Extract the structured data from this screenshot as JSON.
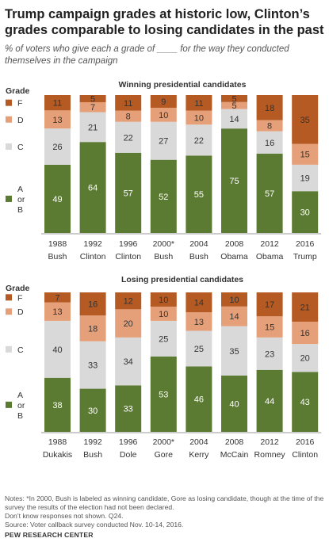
{
  "title": "Trump campaign grades at historic low, Clinton’s grades comparable to losing candidates in the past",
  "subtitle": "% of voters who give each a grade of ____ for the way they conducted themselves in the campaign",
  "notes": {
    "note": "Notes: *In 2000, Bush is labeled as winning candidate, Gore as losing candidate, though at the time of the survey the results of the election had not been declared.",
    "dont_know": "Don’t know responses not shown. Q24.",
    "source": "Source: Voter callback survey conducted Nov. 10-14, 2016."
  },
  "org": "PEW RESEARCH CENTER",
  "colors": {
    "AorB": "#5b7a32",
    "C": "#d9d9d9",
    "D": "#e5a079",
    "F": "#b55a22"
  },
  "chart_data": [
    {
      "type": "bar",
      "stacked": true,
      "title": "Winning presidential candidates",
      "legend_title": "Grade",
      "legend": [
        {
          "key": "F",
          "label": "F"
        },
        {
          "key": "D",
          "label": "D"
        },
        {
          "key": "C",
          "label": "C"
        },
        {
          "key": "AorB",
          "label": "A or B"
        }
      ],
      "years": [
        "1988",
        "1992",
        "1996",
        "2000*",
        "2004",
        "2008",
        "2012",
        "2016"
      ],
      "names": [
        "Bush",
        "Clinton",
        "Clinton",
        "Bush",
        "Bush",
        "Obama",
        "Obama",
        "Trump"
      ],
      "series": [
        {
          "name": "A or B",
          "key": "AorB",
          "values": [
            49,
            64,
            57,
            52,
            55,
            75,
            57,
            30
          ]
        },
        {
          "name": "C",
          "key": "C",
          "values": [
            26,
            21,
            22,
            27,
            22,
            14,
            16,
            19
          ]
        },
        {
          "name": "D",
          "key": "D",
          "values": [
            13,
            7,
            8,
            10,
            10,
            5,
            8,
            15
          ]
        },
        {
          "name": "F",
          "key": "F",
          "values": [
            11,
            5,
            11,
            9,
            11,
            5,
            18,
            35
          ]
        }
      ]
    },
    {
      "type": "bar",
      "stacked": true,
      "title": "Losing presidential candidates",
      "legend_title": "Grade",
      "legend": [
        {
          "key": "F",
          "label": "F"
        },
        {
          "key": "D",
          "label": "D"
        },
        {
          "key": "C",
          "label": "C"
        },
        {
          "key": "AorB",
          "label": "A or B"
        }
      ],
      "years": [
        "1988",
        "1992",
        "1996",
        "2000*",
        "2004",
        "2008",
        "2012",
        "2016"
      ],
      "names": [
        "Dukakis",
        "Bush",
        "Dole",
        "Gore",
        "Kerry",
        "McCain",
        "Romney",
        "Clinton"
      ],
      "series": [
        {
          "name": "A or B",
          "key": "AorB",
          "values": [
            38,
            30,
            33,
            53,
            46,
            40,
            44,
            43
          ]
        },
        {
          "name": "C",
          "key": "C",
          "values": [
            40,
            33,
            34,
            25,
            25,
            35,
            23,
            20
          ]
        },
        {
          "name": "D",
          "key": "D",
          "values": [
            13,
            18,
            20,
            10,
            13,
            14,
            15,
            16
          ]
        },
        {
          "name": "F",
          "key": "F",
          "values": [
            7,
            16,
            12,
            10,
            14,
            10,
            17,
            21
          ]
        }
      ]
    }
  ]
}
